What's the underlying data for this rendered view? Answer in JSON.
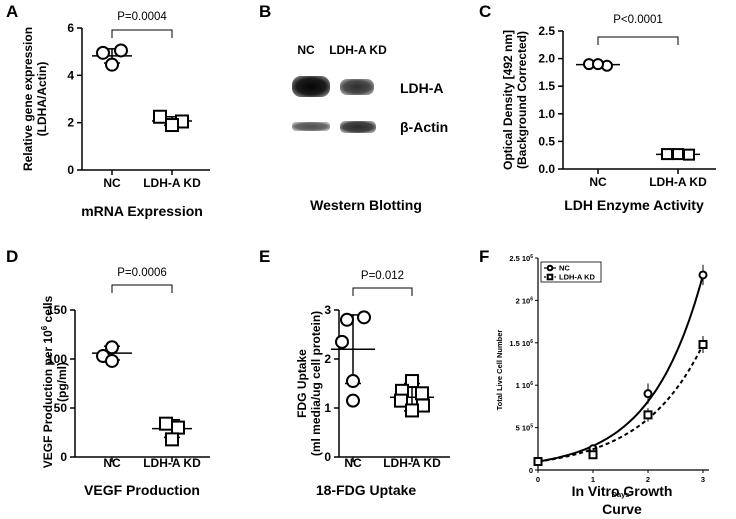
{
  "figure": {
    "panels": [
      {
        "label": "A",
        "title": "mRNA Expression"
      },
      {
        "label": "B",
        "title": "Western Blotting"
      },
      {
        "label": "C",
        "title": "LDH Enzyme Activity"
      },
      {
        "label": "D",
        "title": "VEGF Production"
      },
      {
        "label": "E",
        "title": "18-FDG Uptake"
      },
      {
        "label": "F",
        "title_line1": "In Vitro Growth",
        "title_line2": "Curve"
      }
    ]
  },
  "western_blot": {
    "lane_labels": [
      "NC",
      "LDH-A KD"
    ],
    "band_labels": [
      "LDH-A",
      "β-Actin"
    ]
  },
  "chart_data": [
    {
      "panel": "A",
      "type": "scatter",
      "title": "mRNA Expression",
      "ylabel_lines": [
        "Relative gene expression",
        "(LDHA/Actin)"
      ],
      "categories": [
        "NC",
        "LDH-A KD"
      ],
      "points": [
        [
          4.95,
          5.05,
          4.45
        ],
        [
          2.25,
          2.05,
          1.9
        ]
      ],
      "means": [
        4.82,
        2.07
      ],
      "sd": [
        0.3,
        0.18
      ],
      "markers": [
        "circle",
        "square"
      ],
      "ylim": [
        0,
        6
      ],
      "yticks": [
        0,
        2,
        4,
        6
      ],
      "significance": "P=0.0004"
    },
    {
      "panel": "C",
      "type": "scatter",
      "title": "LDH Enzyme Activity",
      "ylabel_lines": [
        "Optical Density [492 nm]",
        "(Background Corrected)"
      ],
      "categories": [
        "NC",
        "LDH-A KD"
      ],
      "points": [
        [
          1.9,
          1.87,
          1.9
        ],
        [
          0.27,
          0.26,
          0.27
        ]
      ],
      "means": [
        1.89,
        0.265
      ],
      "sd": [
        0.02,
        0.015
      ],
      "markers": [
        "circle",
        "square"
      ],
      "ylim": [
        0,
        2.5
      ],
      "yticks": [
        0.0,
        0.5,
        1.0,
        1.5,
        2.0,
        2.5
      ],
      "ytick_labels": [
        "0.0",
        "0.5",
        "1.0",
        "1.5",
        "2.0",
        "2.5"
      ],
      "significance": "P<0.0001"
    },
    {
      "panel": "D",
      "type": "scatter",
      "title": "VEGF Production",
      "ylabel_line1_pre": "VEGF Production per 10",
      "ylabel_line1_sup": "6",
      "ylabel_line1_post": " cells",
      "ylabel_line2": "(pg/ml)",
      "categories": [
        "NC",
        "LDH-A KD"
      ],
      "points": [
        [
          112,
          103,
          98
        ],
        [
          34,
          30,
          18
        ]
      ],
      "means": [
        106,
        29
      ],
      "sd": [
        7,
        9
      ],
      "markers": [
        "circle",
        "square"
      ],
      "ylim": [
        0,
        150
      ],
      "yticks": [
        0,
        50,
        100,
        150
      ],
      "significance": "P=0.0006"
    },
    {
      "panel": "E",
      "type": "scatter",
      "title": "18-FDG Uptake",
      "ylabel_lines": [
        "FDG Uptake",
        "(ml media/ug cell protein)"
      ],
      "categories": [
        "NC",
        "LDH-A KD"
      ],
      "points": [
        [
          2.8,
          2.85,
          2.35,
          1.55,
          1.15
        ],
        [
          1.55,
          1.35,
          1.3,
          1.15,
          1.05,
          0.95
        ]
      ],
      "means": [
        2.2,
        1.22
      ],
      "sd": [
        0.7,
        0.28
      ],
      "markers": [
        "circle",
        "square"
      ],
      "ylim": [
        0,
        3
      ],
      "yticks": [
        0,
        1,
        2,
        3
      ],
      "significance": "P=0.012"
    },
    {
      "panel": "F",
      "type": "line",
      "title": "In Vitro Growth Curve",
      "xlabel": "Days",
      "ylabel": "Total Live Cell Number",
      "x": [
        0,
        1,
        2,
        3
      ],
      "xticks": [
        0,
        1,
        2,
        3
      ],
      "xlim": [
        0,
        3
      ],
      "ylim": [
        0,
        2500000
      ],
      "yticks": [
        0,
        500000,
        1000000,
        1500000,
        2000000,
        2500000
      ],
      "ytick_mantissa": [
        "0",
        "5 10",
        "1 10",
        "1.5 10",
        "2 10",
        "2.5 10"
      ],
      "ytick_exp": [
        "",
        "5",
        "6",
        "6",
        "6",
        "6"
      ],
      "series": [
        {
          "name": "NC",
          "marker": "circle",
          "line": "solid",
          "values": [
            100000,
            250000,
            900000,
            2300000
          ],
          "err": [
            20000,
            40000,
            120000,
            120000
          ]
        },
        {
          "name": "LDH-A KD",
          "marker": "square",
          "line": "dashed",
          "values": [
            100000,
            180000,
            650000,
            1480000
          ],
          "err": [
            20000,
            30000,
            80000,
            100000
          ]
        }
      ],
      "legend": "top-left"
    }
  ]
}
